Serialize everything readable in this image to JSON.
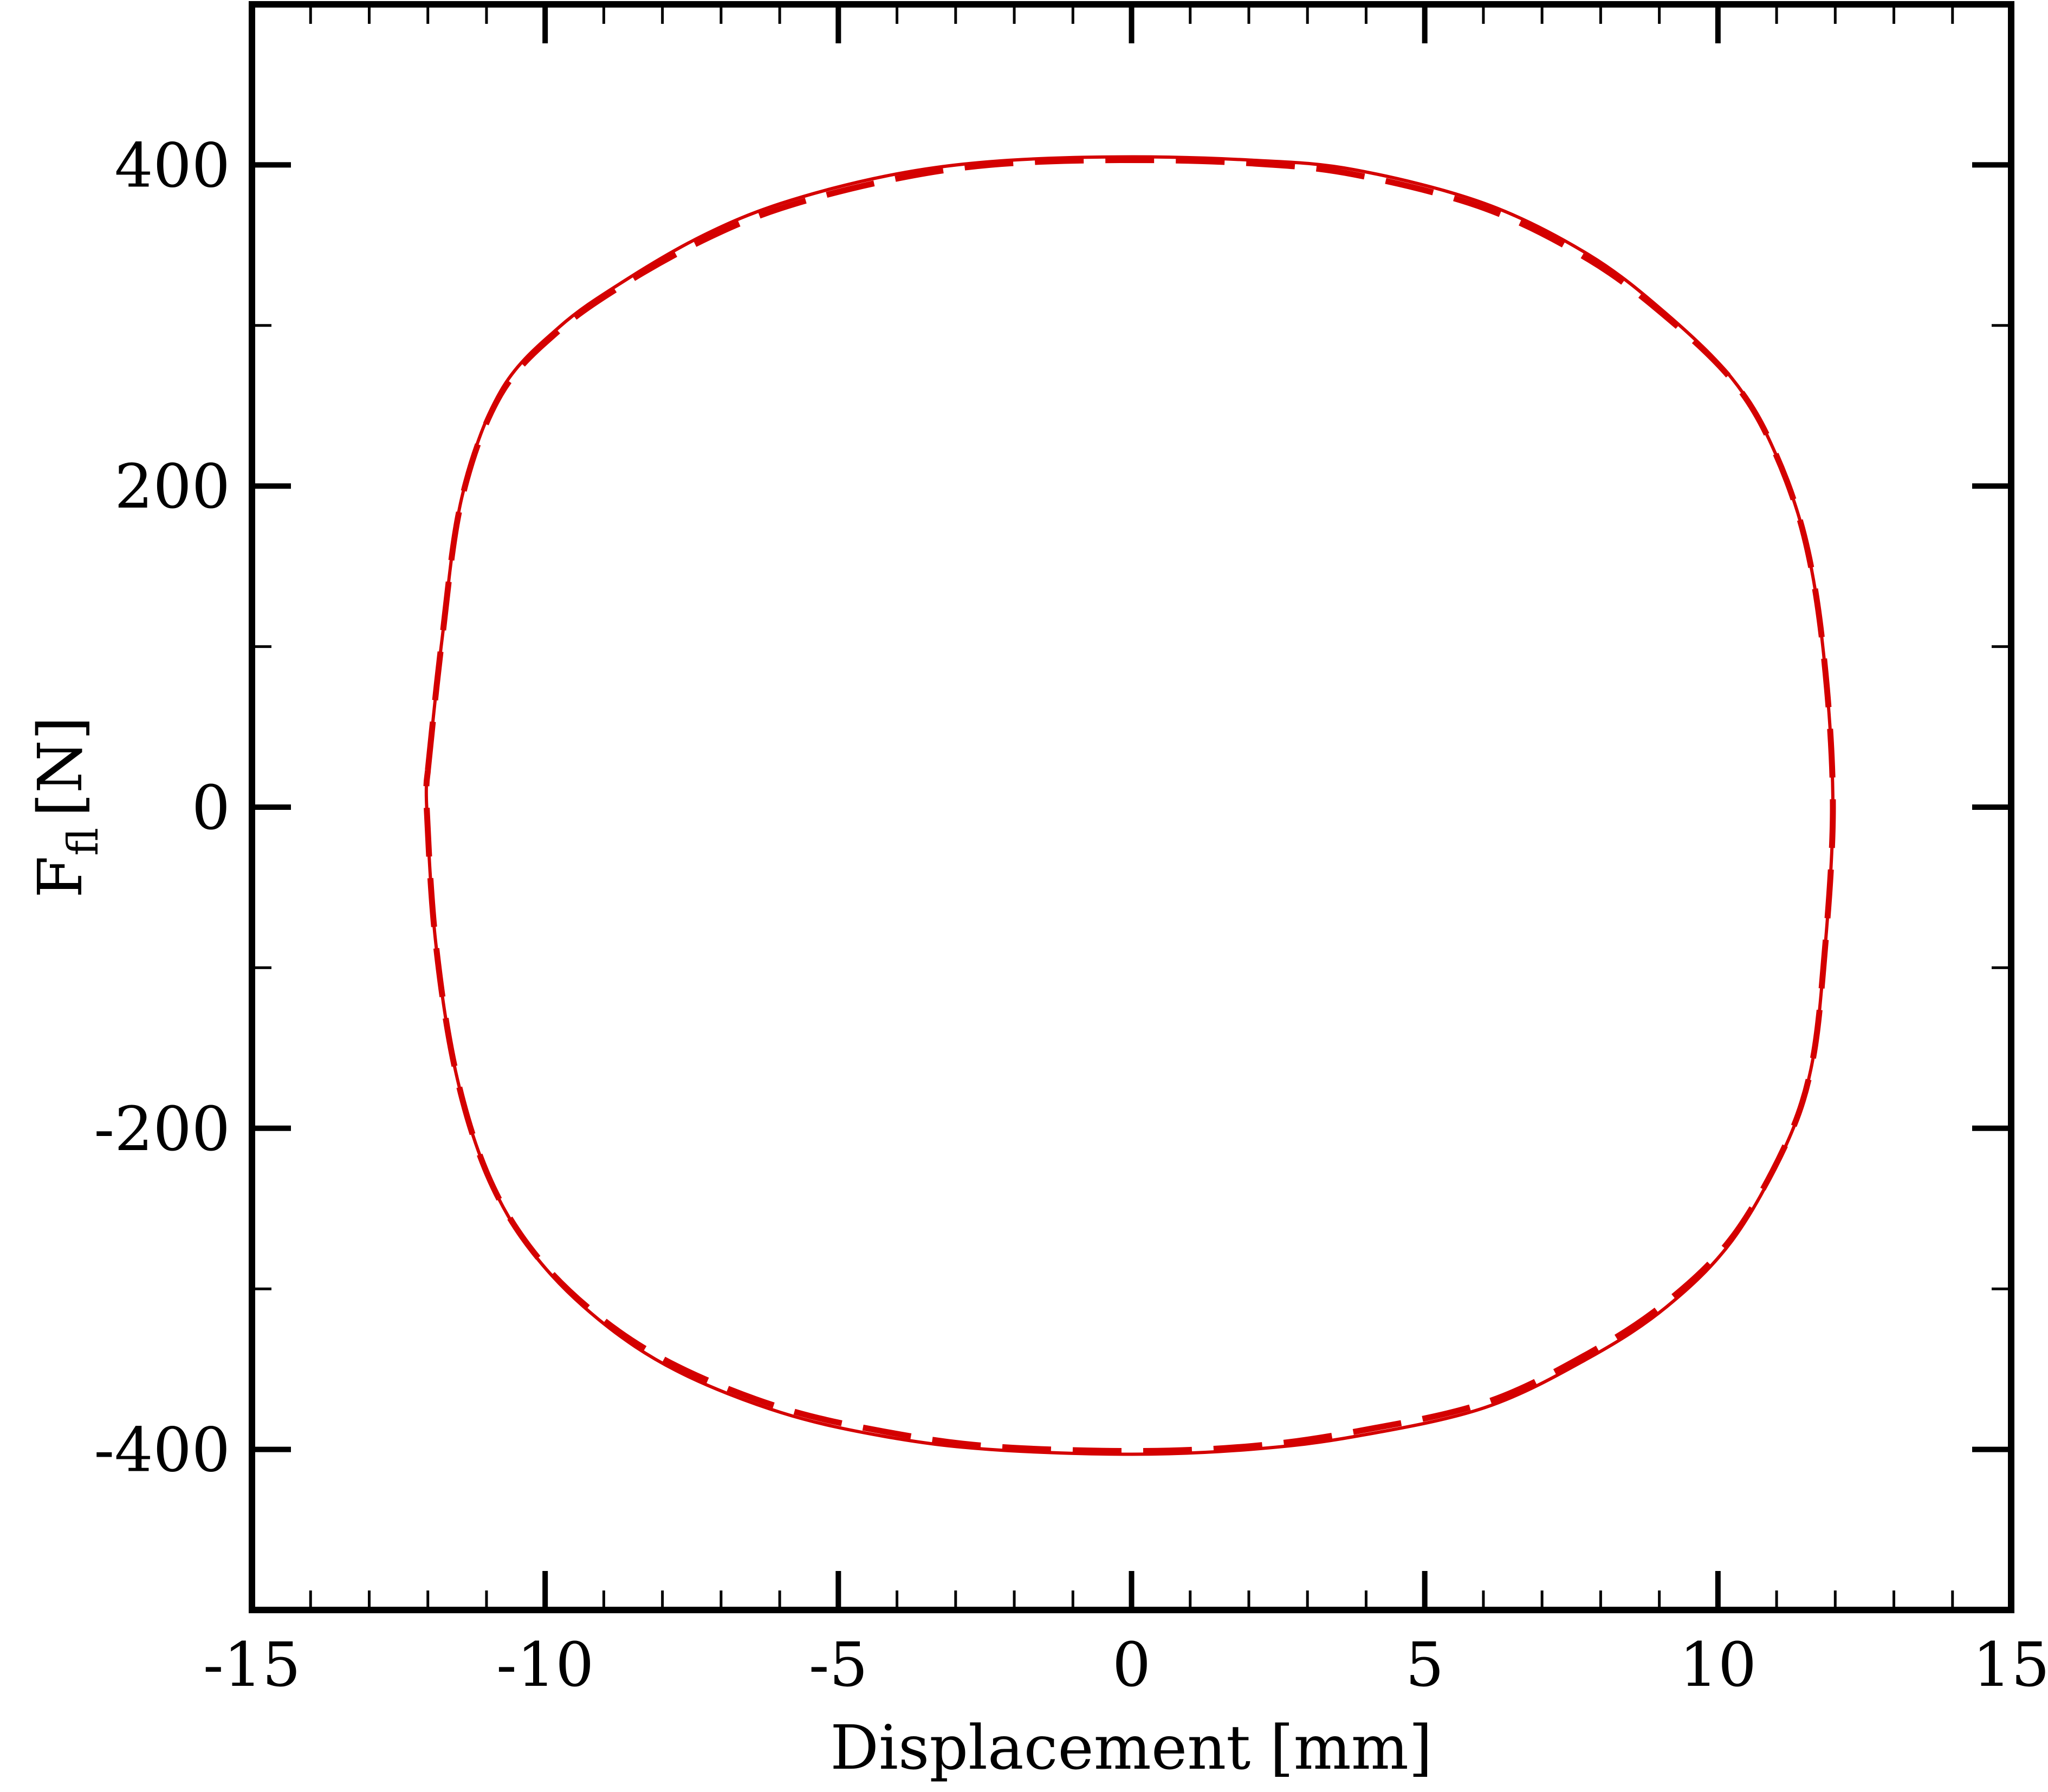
{
  "chart_data": {
    "type": "line",
    "xlabel": "Displacement [mm]",
    "ylabel": {
      "main": "F",
      "sub": "fl",
      "unit": "[N]"
    },
    "x": [
      -12.0,
      -11.76,
      -11.42,
      -10.76,
      -9.76,
      -8.64,
      -7.31,
      -5.98,
      -4.2,
      -2.42,
      -0.2,
      2.02,
      3.8,
      6.02,
      7.8,
      9.13,
      10.24,
      10.91,
      11.47,
      11.8,
      11.96,
      11.8,
      11.58,
      11.13,
      10.24,
      9.13,
      7.8,
      6.02,
      3.8,
      2.02,
      0.0,
      -2.42,
      -4.2,
      -5.98,
      -7.76,
      -9.09,
      -10.2,
      -10.98,
      -11.53,
      -11.87,
      -12.02,
      -12.0
    ],
    "series": [
      {
        "color": "#d40000",
        "dash": false,
        "values": [
          23,
          104,
          193,
          259,
          299,
          328,
          356,
          376,
          393,
          402,
          405,
          403,
          397,
          376,
          344,
          307,
          267,
          226,
          169,
          96,
          0,
          -99,
          -164,
          -213,
          -270,
          -311,
          -343,
          -374,
          -392,
          -400,
          -403,
          -400,
          -392,
          -377,
          -351,
          -319,
          -278,
          -229,
          -164,
          -83,
          0,
          23
        ]
      },
      {
        "color": "#d40000",
        "dash": true,
        "values": [
          23,
          104,
          192,
          257,
          297,
          326,
          353,
          373,
          390,
          400,
          403,
          401,
          394,
          373,
          341,
          305,
          266,
          226,
          169,
          96,
          0,
          -99,
          -164,
          -212,
          -268,
          -308,
          -340,
          -371,
          -389,
          -398,
          -401,
          -398,
          -389,
          -374,
          -348,
          -317,
          -277,
          -229,
          -164,
          -83,
          0,
          23
        ]
      }
    ],
    "xlim": [
      -15,
      15
    ],
    "xticks": [
      -15,
      -10,
      -5,
      0,
      5,
      10,
      15
    ],
    "xminorticks": [
      -14,
      -13,
      -12,
      -11,
      -9,
      -8,
      -7,
      -6,
      -4,
      -3,
      -2,
      -1,
      1,
      2,
      3,
      4,
      6,
      7,
      8,
      9,
      11,
      12,
      13,
      14
    ],
    "ylim": [
      -500,
      500
    ],
    "yticks": [
      -400,
      -200,
      0,
      200,
      400
    ],
    "yminorticks": [
      -500,
      -300,
      -100,
      100,
      300,
      500
    ],
    "grid": false
  }
}
